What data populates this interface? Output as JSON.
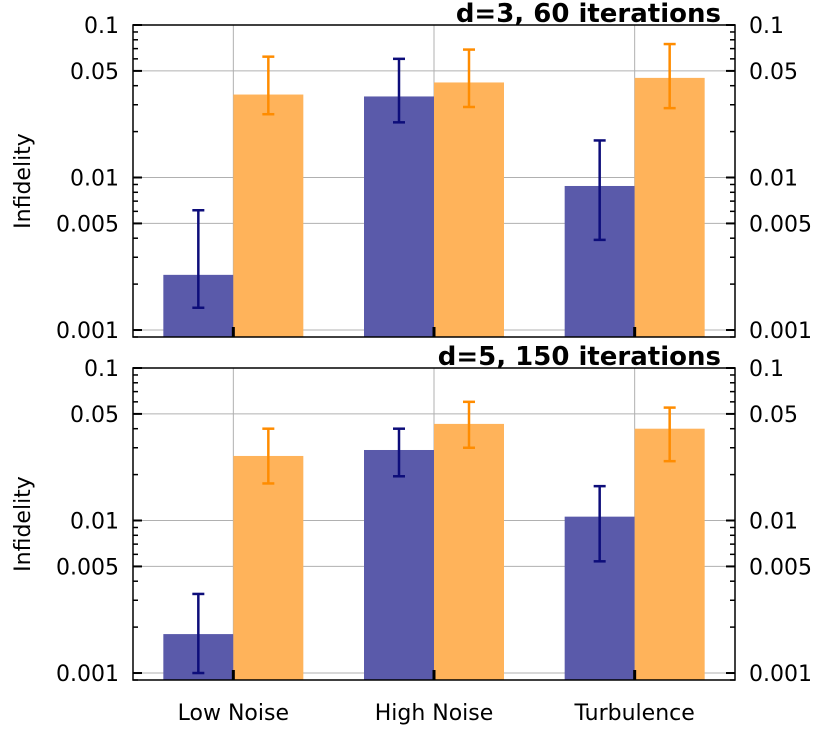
{
  "chart_data": [
    {
      "type": "bar",
      "title": "d=3, 60 iterations",
      "xlabel": "",
      "ylabel": "Infidelity",
      "yscale": "log",
      "ylim": [
        0.0009,
        0.1
      ],
      "grid": true,
      "yticks": [
        {
          "value": 0.1,
          "label": "0.1"
        },
        {
          "value": 0.05,
          "label": "0.05"
        },
        {
          "value": 0.01,
          "label": "0.01"
        },
        {
          "value": 0.005,
          "label": "0.005"
        },
        {
          "value": 0.001,
          "label": "0.001"
        }
      ],
      "categories": [
        "Low Noise",
        "High Noise",
        "Turbulence"
      ],
      "show_category_labels": false,
      "series": [
        {
          "color": "#5a5aaa",
          "error_color": "#0d0d7a",
          "values": [
            0.0023,
            0.034,
            0.0088
          ],
          "err_low": [
            0.0014,
            0.023,
            0.0039
          ],
          "err_high": [
            0.0061,
            0.06,
            0.0175
          ]
        },
        {
          "color": "#ffb35a",
          "error_color": "#ff8c00",
          "values": [
            0.035,
            0.042,
            0.045
          ],
          "err_low": [
            0.026,
            0.029,
            0.0285
          ],
          "err_high": [
            0.062,
            0.069,
            0.075
          ]
        }
      ]
    },
    {
      "type": "bar",
      "title": "d=5, 150 iterations",
      "xlabel": "",
      "ylabel": "Infidelity",
      "yscale": "log",
      "ylim": [
        0.0009,
        0.1
      ],
      "grid": true,
      "yticks": [
        {
          "value": 0.1,
          "label": "0.1"
        },
        {
          "value": 0.05,
          "label": "0.05"
        },
        {
          "value": 0.01,
          "label": "0.01"
        },
        {
          "value": 0.005,
          "label": "0.005"
        },
        {
          "value": 0.001,
          "label": "0.001"
        }
      ],
      "categories": [
        "Low Noise",
        "High Noise",
        "Turbulence"
      ],
      "show_category_labels": true,
      "series": [
        {
          "color": "#5a5aaa",
          "error_color": "#0d0d7a",
          "values": [
            0.0018,
            0.029,
            0.0106
          ],
          "err_low": [
            0.001,
            0.0195,
            0.0054
          ],
          "err_high": [
            0.0033,
            0.04,
            0.0168
          ]
        },
        {
          "color": "#ffb35a",
          "error_color": "#ff8c00",
          "values": [
            0.0265,
            0.043,
            0.04
          ],
          "err_low": [
            0.0175,
            0.03,
            0.0245
          ],
          "err_high": [
            0.04,
            0.06,
            0.055
          ]
        }
      ]
    }
  ]
}
